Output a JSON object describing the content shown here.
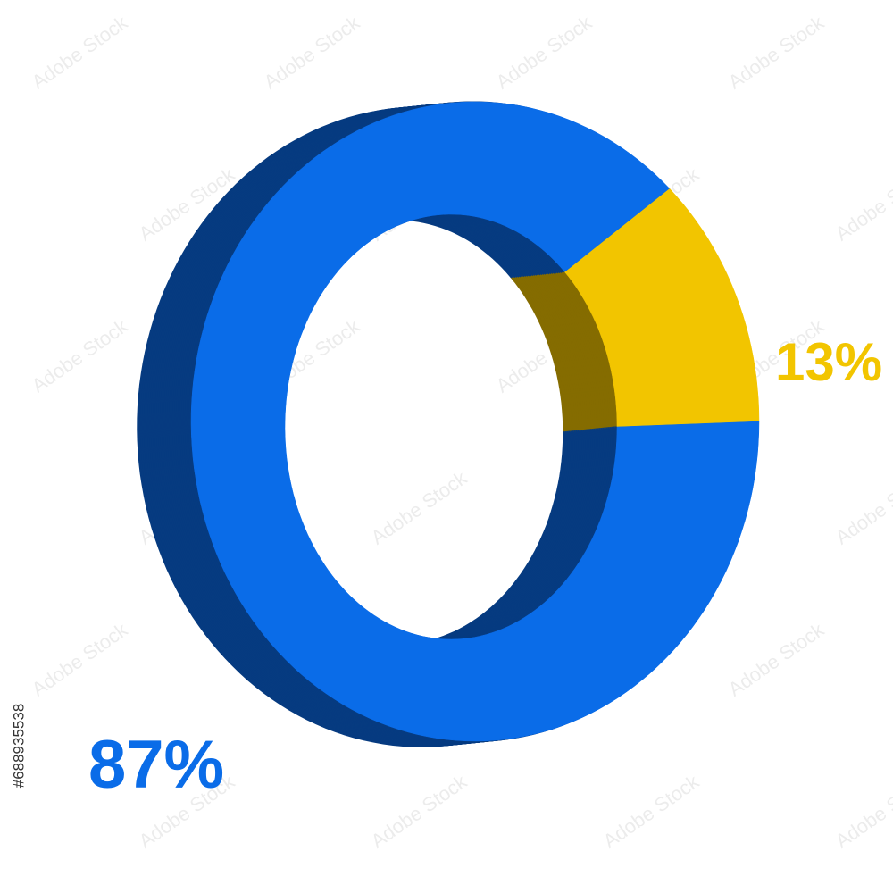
{
  "chart_data": {
    "type": "pie",
    "categories": [
      "87%",
      "13%"
    ],
    "values": [
      87,
      13
    ],
    "value_labels": [
      "87%",
      "13%"
    ],
    "colors": [
      "#0a6ce8",
      "#f2c500"
    ]
  },
  "stock_id": "#688935538",
  "watermark": "Adobe Stock"
}
